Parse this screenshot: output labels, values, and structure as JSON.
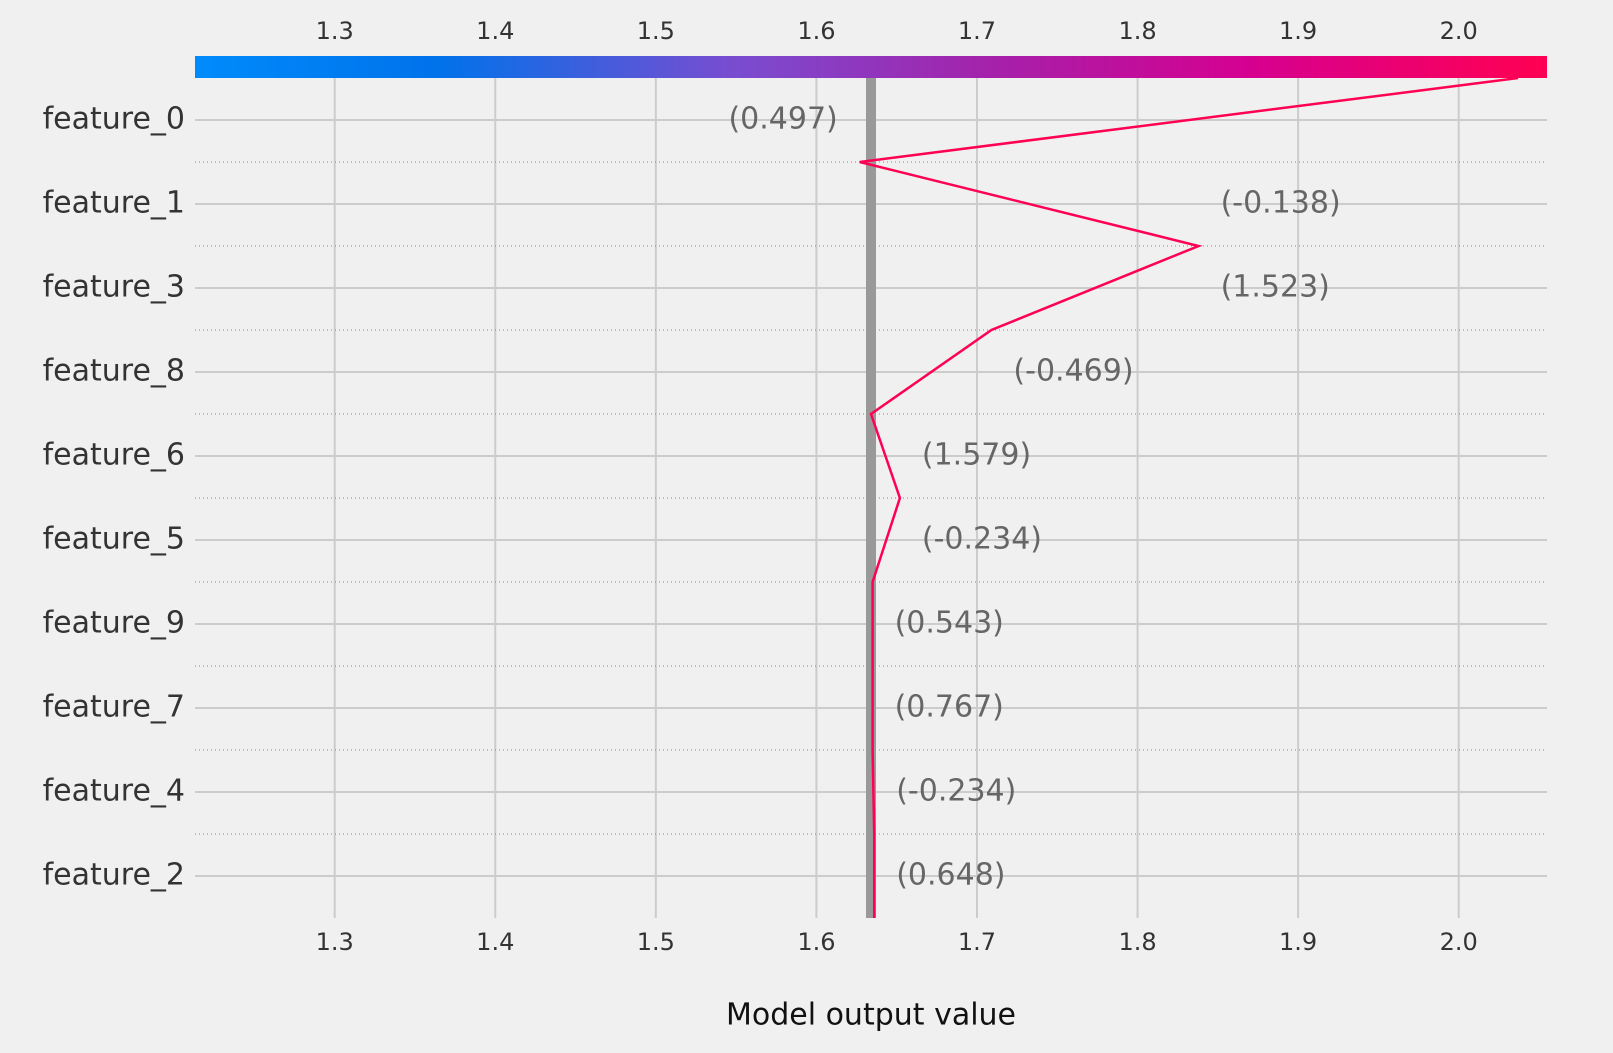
{
  "chart_data": {
    "type": "decision",
    "xlabel": "Model output value",
    "features": [
      "feature_0",
      "feature_1",
      "feature_3",
      "feature_8",
      "feature_6",
      "feature_5",
      "feature_9",
      "feature_7",
      "feature_4",
      "feature_2"
    ],
    "feature_value_labels": [
      "(0.497)",
      "(-0.138)",
      "(1.523)",
      "(-0.469)",
      "(1.579)",
      "(-0.234)",
      "(0.543)",
      "(0.767)",
      "(-0.234)",
      "(0.648)"
    ],
    "values": [
      2.037,
      1.627,
      1.838,
      1.709,
      1.634,
      1.652,
      1.635,
      1.635,
      1.635,
      1.636,
      1.636
    ],
    "base_value": 1.634,
    "color": "#ff0052",
    "base_color": "#999999",
    "xlim": [
      1.213,
      2.055
    ],
    "xticks": [
      1.3,
      1.4,
      1.5,
      1.6,
      1.7,
      1.8,
      1.9,
      {
        "value": 2,
        "label": "2.0"
      }
    ],
    "grid": true
  }
}
